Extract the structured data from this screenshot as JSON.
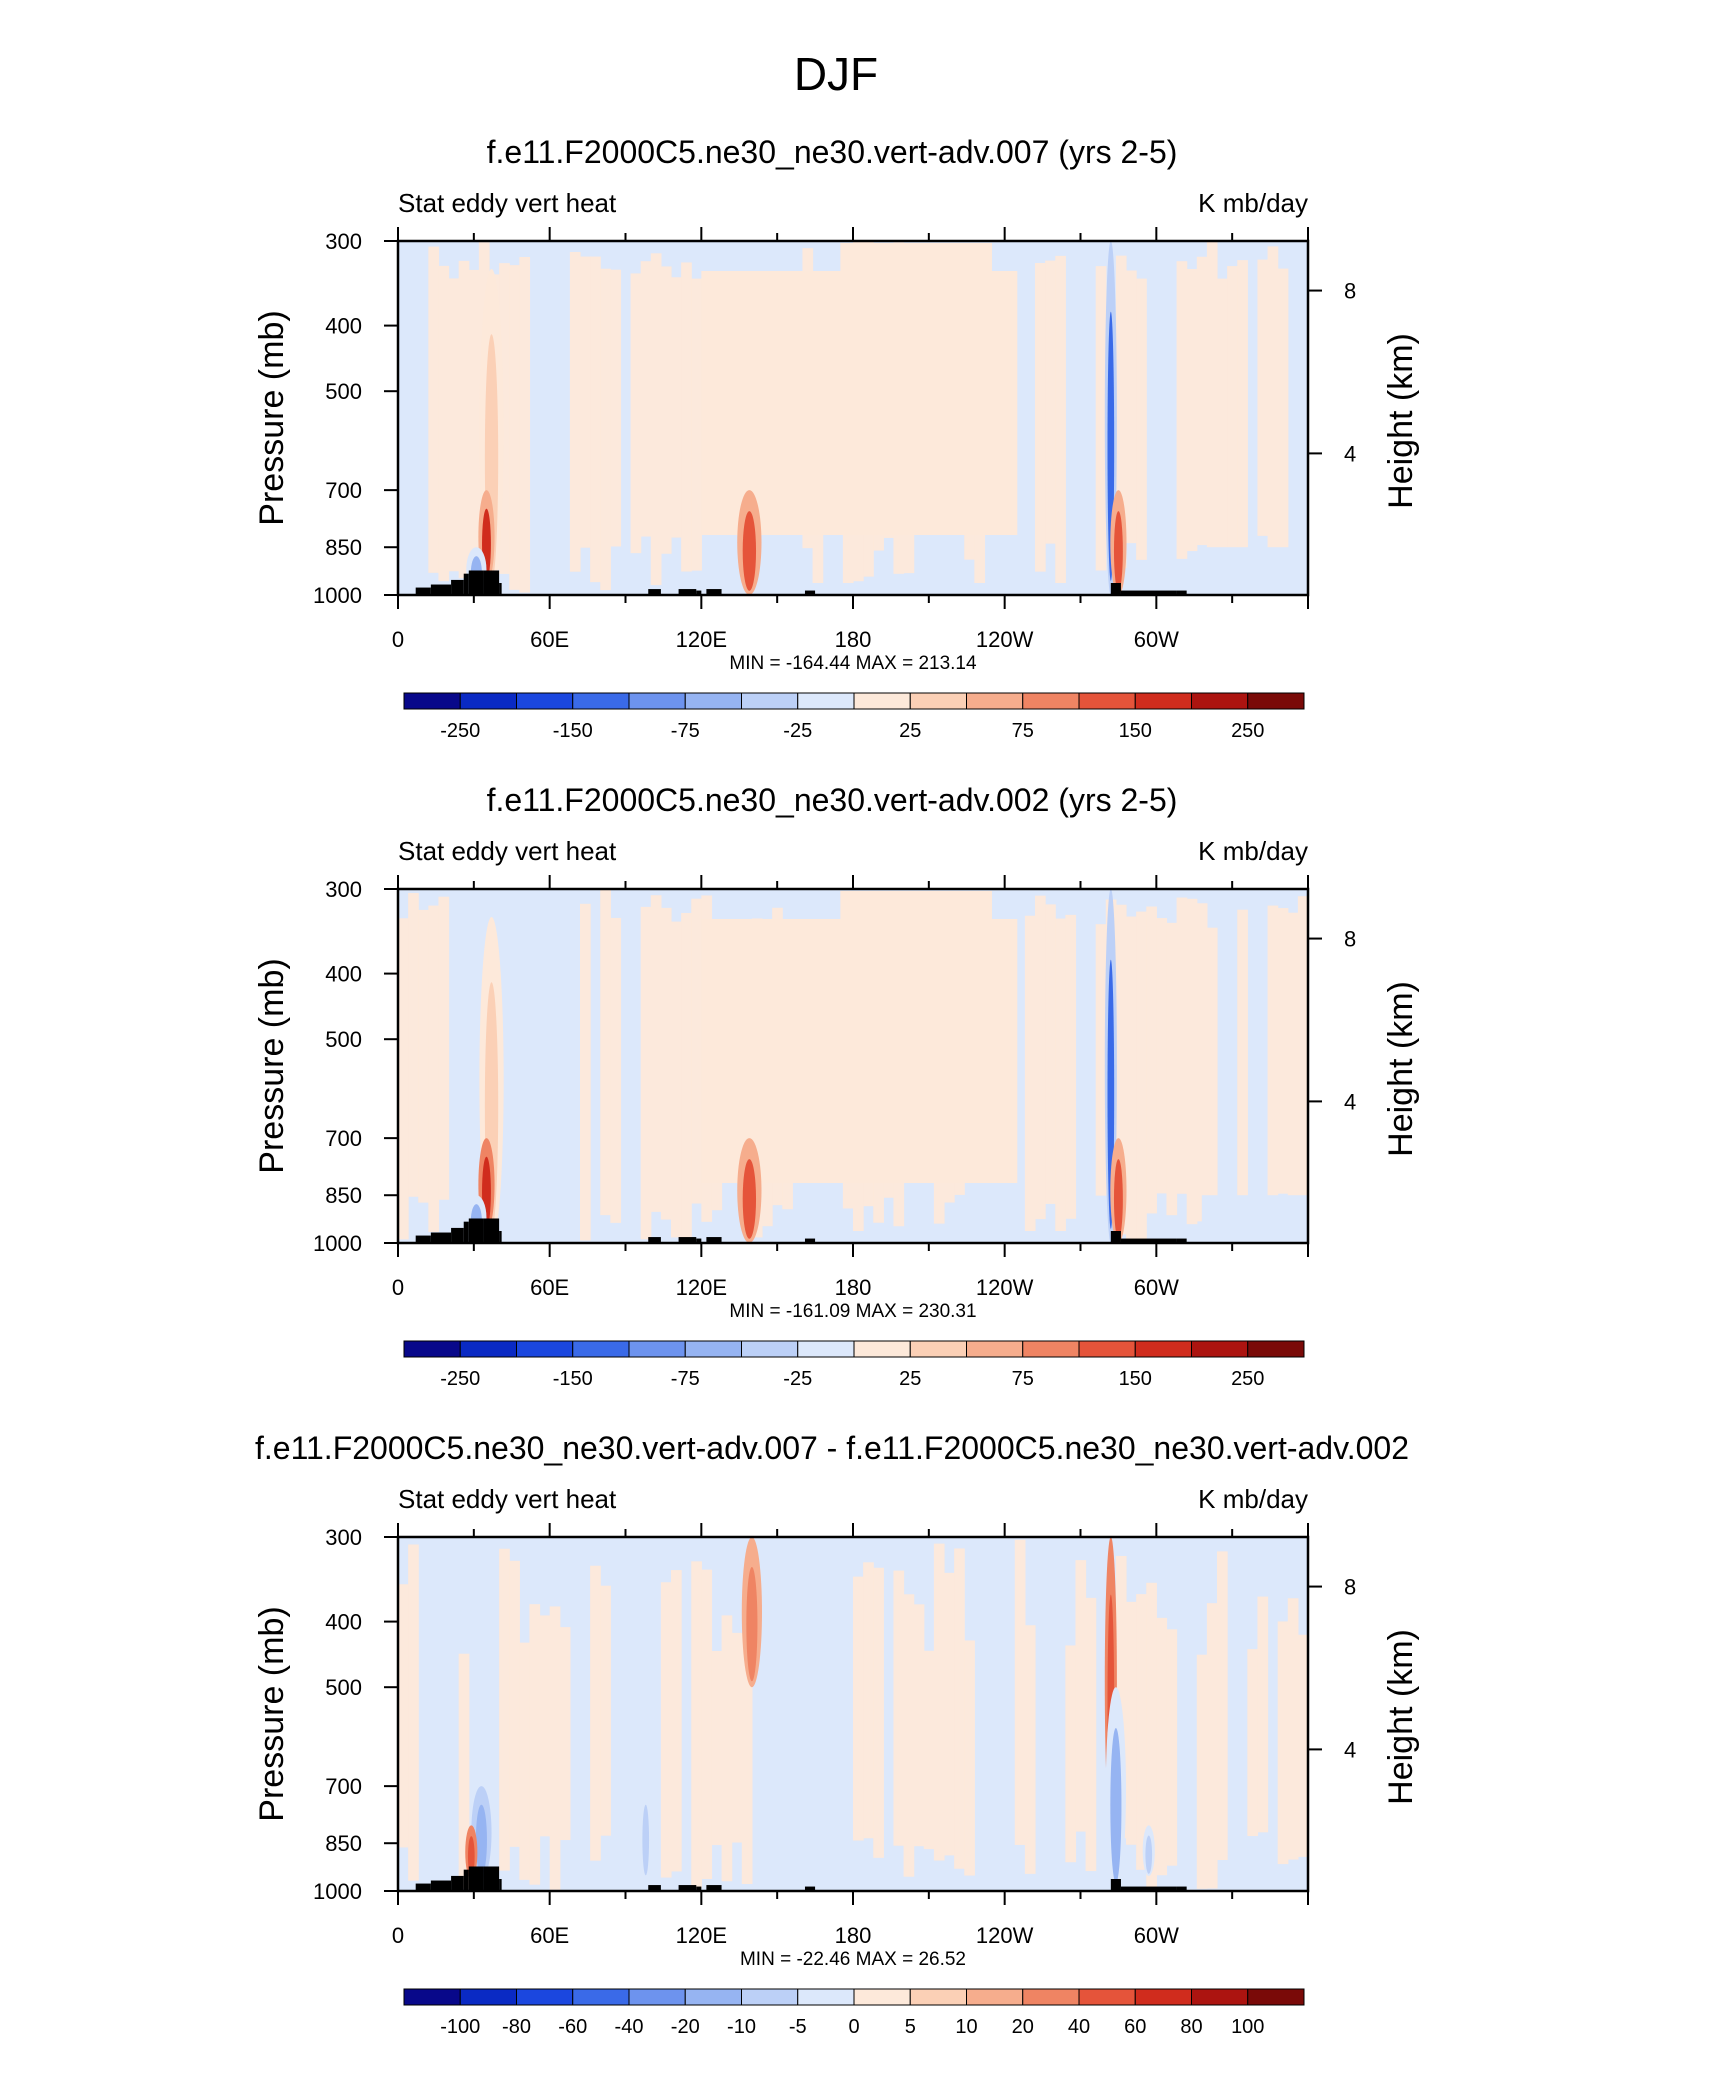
{
  "figure_title": "DJF",
  "chart_data": [
    {
      "type": "heatmap",
      "title": "f.e11.F2000C5.ne30_ne30.vert-adv.007 (yrs 2-5)",
      "left_label": "Stat eddy vert heat",
      "right_label": "K mb/day",
      "ylabel": "Pressure (mb)",
      "y2label": "Height (km)",
      "x_ticks": [
        "0",
        "60E",
        "120E",
        "180",
        "120W",
        "60W"
      ],
      "y_ticks": [
        "300",
        "400",
        "500",
        "700",
        "850",
        "1000"
      ],
      "y2_ticks": [
        "8",
        "4"
      ],
      "stats": "MIN = -164.44  MAX = 213.14",
      "colorbar_labels": [
        "-250",
        "-150",
        "-75",
        "-25",
        "25",
        "75",
        "150",
        "250"
      ],
      "features": [
        {
          "lon": 37,
          "p_top": 330,
          "p_bot": 1000,
          "value": 45,
          "width": 3
        },
        {
          "lon": 35,
          "p_top": 700,
          "p_bot": 960,
          "value": 160,
          "width": 2
        },
        {
          "lon": 31,
          "p_top": 850,
          "p_bot": 990,
          "value": -90,
          "width": 2.5
        },
        {
          "lon": 139,
          "p_top": 700,
          "p_bot": 1000,
          "value": 130,
          "width": 3
        },
        {
          "lon": 282,
          "p_top": 300,
          "p_bot": 1000,
          "value": -160,
          "width": 1.5
        },
        {
          "lon": 285,
          "p_top": 700,
          "p_bot": 1000,
          "value": 120,
          "width": 2
        }
      ]
    },
    {
      "type": "heatmap",
      "title": "f.e11.F2000C5.ne30_ne30.vert-adv.002 (yrs 2-5)",
      "left_label": "Stat eddy vert heat",
      "right_label": "K mb/day",
      "ylabel": "Pressure (mb)",
      "y2label": "Height (km)",
      "x_ticks": [
        "0",
        "60E",
        "120E",
        "180",
        "120W",
        "60W"
      ],
      "y_ticks": [
        "300",
        "400",
        "500",
        "700",
        "850",
        "1000"
      ],
      "y2_ticks": [
        "8",
        "4"
      ],
      "stats": "MIN = -161.09  MAX = 230.31",
      "colorbar_labels": [
        "-250",
        "-150",
        "-75",
        "-25",
        "25",
        "75",
        "150",
        "250"
      ],
      "features": [
        {
          "lon": 37,
          "p_top": 330,
          "p_bot": 1000,
          "value": 45,
          "width": 3
        },
        {
          "lon": 35,
          "p_top": 700,
          "p_bot": 960,
          "value": 170,
          "width": 2
        },
        {
          "lon": 31,
          "p_top": 850,
          "p_bot": 990,
          "value": -90,
          "width": 2.5
        },
        {
          "lon": 139,
          "p_top": 700,
          "p_bot": 1000,
          "value": 130,
          "width": 3
        },
        {
          "lon": 282,
          "p_top": 300,
          "p_bot": 1000,
          "value": -160,
          "width": 1.5
        },
        {
          "lon": 285,
          "p_top": 700,
          "p_bot": 1000,
          "value": 130,
          "width": 2
        }
      ]
    },
    {
      "type": "heatmap",
      "title": "f.e11.F2000C5.ne30_ne30.vert-adv.007 - f.e11.F2000C5.ne30_ne30.vert-adv.002",
      "left_label": "Stat eddy vert heat",
      "right_label": "K mb/day",
      "ylabel": "Pressure (mb)",
      "y2label": "Height (km)",
      "x_ticks": [
        "0",
        "60E",
        "120E",
        "180",
        "120W",
        "60W"
      ],
      "y_ticks": [
        "300",
        "400",
        "500",
        "700",
        "850",
        "1000"
      ],
      "y2_ticks": [
        "8",
        "4"
      ],
      "stats": "MIN = -22.46  MAX =  26.52",
      "colorbar_labels": [
        "-100",
        "-80",
        "-60",
        "-40",
        "-20",
        "-10",
        "-5",
        "0",
        "5",
        "10",
        "20",
        "40",
        "60",
        "80",
        "100"
      ],
      "features": [
        {
          "lon": 33,
          "p_top": 700,
          "p_bot": 960,
          "value": -25,
          "width": 2.5
        },
        {
          "lon": 29,
          "p_top": 800,
          "p_bot": 960,
          "value": 30,
          "width": 1.5
        },
        {
          "lon": 140,
          "p_top": 300,
          "p_bot": 500,
          "value": 18,
          "width": 2.5
        },
        {
          "lon": 98,
          "p_top": 700,
          "p_bot": 960,
          "value": -12,
          "width": 1.5
        },
        {
          "lon": 282,
          "p_top": 300,
          "p_bot": 800,
          "value": 25,
          "width": 1.5
        },
        {
          "lon": 284,
          "p_top": 500,
          "p_bot": 1000,
          "value": -20,
          "width": 2.5
        },
        {
          "lon": 297,
          "p_top": 800,
          "p_bot": 950,
          "value": -15,
          "width": 1.5
        }
      ]
    }
  ],
  "colors": {
    "palette": [
      "#08088a",
      "#0a2ac4",
      "#1b47df",
      "#3a6ae8",
      "#6d93ee",
      "#96b4f2",
      "#bcd0f7",
      "#dce8fb",
      "#fde9da",
      "#fbd0b6",
      "#f6ad8d",
      "#ef8463",
      "#e5543a",
      "#d02c1d",
      "#ac1410",
      "#7a0a08"
    ],
    "terrain": "#000000"
  }
}
